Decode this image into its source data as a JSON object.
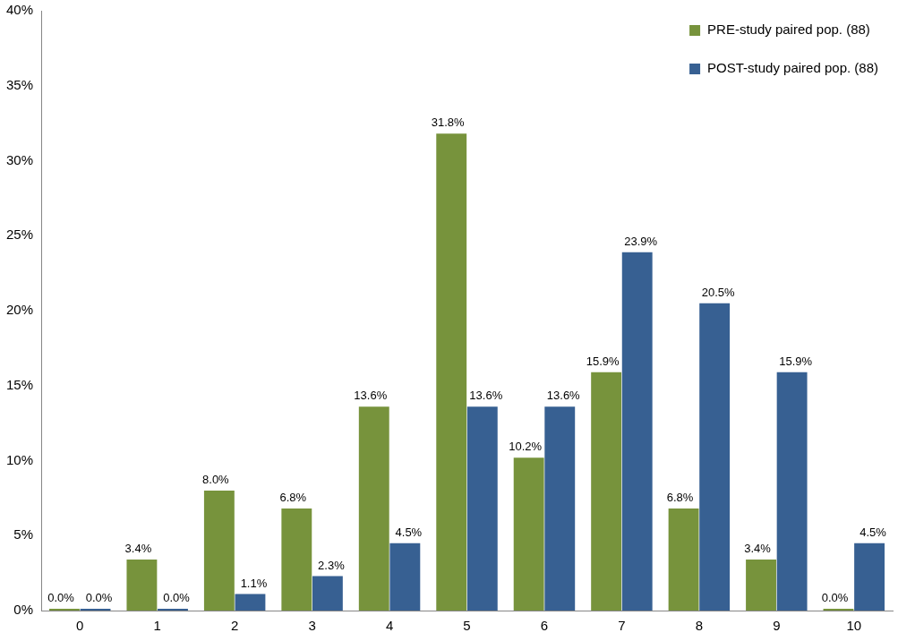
{
  "chart_data": {
    "type": "bar",
    "categories": [
      "0",
      "1",
      "2",
      "3",
      "4",
      "5",
      "6",
      "7",
      "8",
      "9",
      "10"
    ],
    "series": [
      {
        "name": "PRE-study paired pop. (88)",
        "color": "#77933c",
        "values": [
          0.0,
          3.4,
          8.0,
          6.8,
          13.6,
          31.8,
          10.2,
          15.9,
          6.8,
          3.4,
          0.0
        ],
        "value_labels": [
          "0.0%",
          "3.4%",
          "8.0%",
          "6.8%",
          "13.6%",
          "31.8%",
          "10.2%",
          "15.9%",
          "6.8%",
          "3.4%",
          "0.0%"
        ]
      },
      {
        "name": "POST-study paired pop. (88)",
        "color": "#376092",
        "values": [
          0.0,
          0.0,
          1.1,
          2.3,
          4.5,
          13.6,
          13.6,
          23.9,
          20.5,
          15.9,
          4.5
        ],
        "value_labels": [
          "0.0%",
          "0.0%",
          "1.1%",
          "2.3%",
          "4.5%",
          "13.6%",
          "13.6%",
          "23.9%",
          "20.5%",
          "15.9%",
          "4.5%"
        ]
      }
    ],
    "ylim": [
      0,
      40
    ],
    "yticks": [
      {
        "value": 0,
        "label": "0%"
      },
      {
        "value": 5,
        "label": "5%"
      },
      {
        "value": 10,
        "label": "10%"
      },
      {
        "value": 15,
        "label": "15%"
      },
      {
        "value": 20,
        "label": "20%"
      },
      {
        "value": 25,
        "label": "25%"
      },
      {
        "value": 30,
        "label": "30%"
      },
      {
        "value": 35,
        "label": "35%"
      },
      {
        "value": 40,
        "label": "40%"
      }
    ],
    "grid": false,
    "legend": "top right"
  }
}
